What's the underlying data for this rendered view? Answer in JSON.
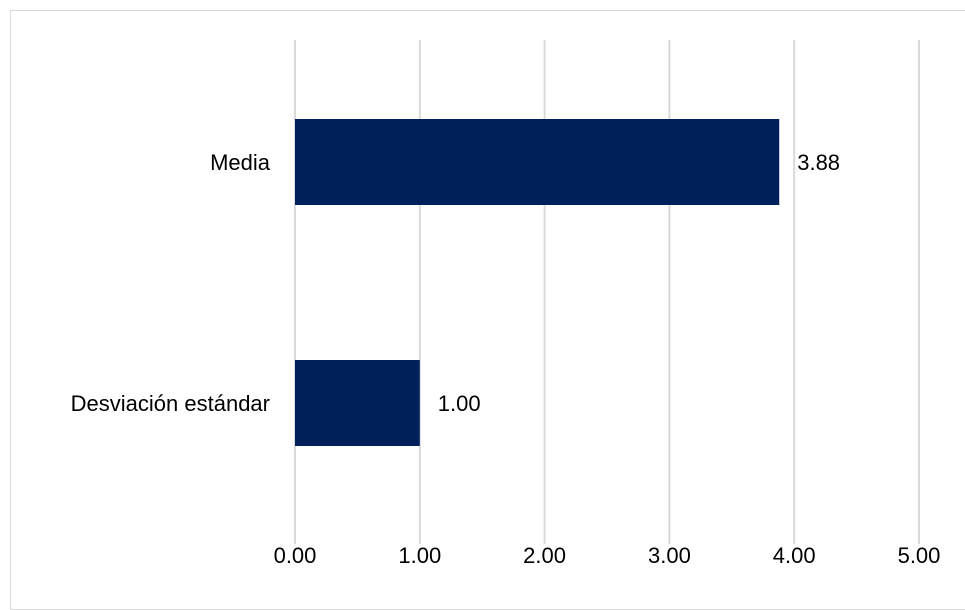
{
  "chart_data": {
    "type": "bar",
    "orientation": "horizontal",
    "categories": [
      "Media",
      "Desviación estándar"
    ],
    "values": [
      3.88,
      1.0
    ],
    "value_labels": [
      "3.88",
      "1.00"
    ],
    "xlim": [
      0,
      5
    ],
    "xticks": [
      "0.00",
      "1.00",
      "2.00",
      "3.00",
      "4.00",
      "5.00"
    ],
    "grid": "vertical",
    "bar_color": "#00205b",
    "gridline_color": "#d9d9d9"
  }
}
